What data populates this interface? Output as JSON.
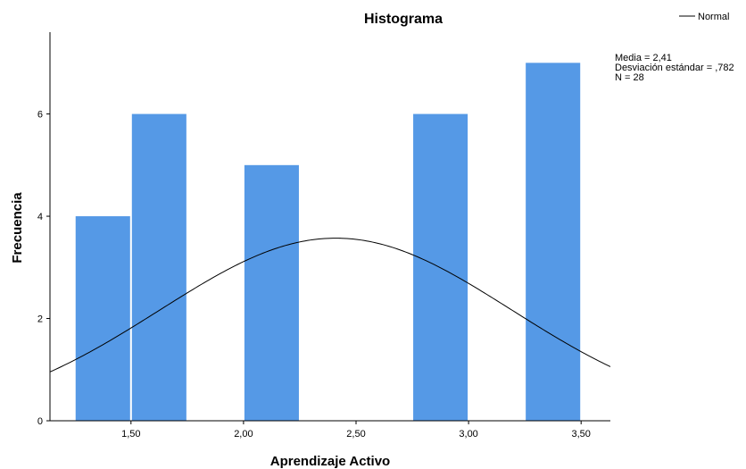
{
  "chart_data": {
    "type": "bar",
    "title": "Histograma",
    "xlabel": "Aprendizaje Activo",
    "ylabel": "Frecuencia",
    "bin_width": 0.25,
    "bins": [
      {
        "center": 1.375,
        "value": 4
      },
      {
        "center": 1.625,
        "value": 6
      },
      {
        "center": 2.125,
        "value": 5
      },
      {
        "center": 2.875,
        "value": 6
      },
      {
        "center": 3.375,
        "value": 7
      }
    ],
    "xlim": [
      1.14,
      3.63
    ],
    "ylim": [
      0,
      7.6
    ],
    "x_ticks": [
      1.5,
      2.0,
      2.5,
      3.0,
      3.5
    ],
    "x_tick_labels": [
      "1,50",
      "2,00",
      "2,50",
      "3,00",
      "3,50"
    ],
    "y_ticks": [
      0,
      2,
      4,
      6
    ],
    "y_tick_labels": [
      "0",
      "2",
      "4",
      "6"
    ],
    "bar_color": "#5599e6",
    "normal_curve": {
      "mean": 2.41,
      "sd": 0.782,
      "n": 28
    },
    "stats_lines": [
      "Media = 2,41",
      "Desviación estándar = ,782",
      "N = 28"
    ],
    "legend": {
      "entries": [
        "Normal"
      ],
      "placement": "top-right"
    }
  }
}
